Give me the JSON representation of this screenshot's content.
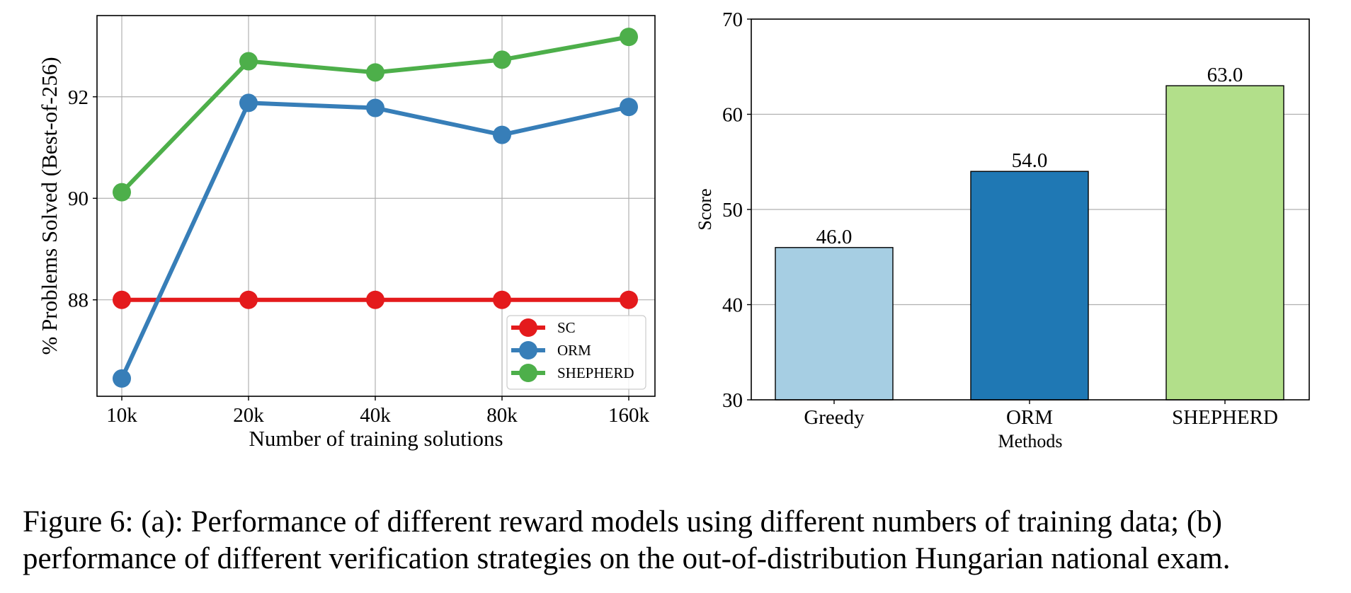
{
  "caption": "Figure 6: (a): Performance of different reward models using different numbers of training data; (b) performance of different verification strategies on the out-of-distribution Hungarian national exam.",
  "chart_data": [
    {
      "type": "line",
      "title": "",
      "xlabel": "Number of training solutions",
      "ylabel": "% Problems Solved (Best-of-256)",
      "categories": [
        "10k",
        "20k",
        "40k",
        "80k",
        "160k"
      ],
      "ylim": [
        86.1,
        93.6
      ],
      "yticks": [
        88,
        90,
        92
      ],
      "grid": true,
      "legend_position": "bottom-right",
      "series": [
        {
          "name": "SC",
          "color": "#e41a1c",
          "values": [
            88.0,
            88.0,
            88.0,
            88.0,
            88.0
          ]
        },
        {
          "name": "ORM",
          "color": "#377eb8",
          "values": [
            86.45,
            91.88,
            91.78,
            91.25,
            91.8
          ]
        },
        {
          "name": "SHEPHERD",
          "color": "#4daf4a",
          "values": [
            90.12,
            92.7,
            92.48,
            92.73,
            93.18
          ]
        }
      ]
    },
    {
      "type": "bar",
      "title": "",
      "xlabel": "Methods",
      "ylabel": "Score",
      "categories": [
        "Greedy",
        "ORM",
        "SHEPHERD"
      ],
      "values": [
        46.0,
        54.0,
        63.0
      ],
      "value_labels": [
        "46.0",
        "54.0",
        "63.0"
      ],
      "colors": [
        "#a6cee3",
        "#1f78b4",
        "#b2df8a"
      ],
      "ylim": [
        30,
        70
      ],
      "yticks": [
        30,
        40,
        50,
        60,
        70
      ],
      "grid": true
    }
  ]
}
